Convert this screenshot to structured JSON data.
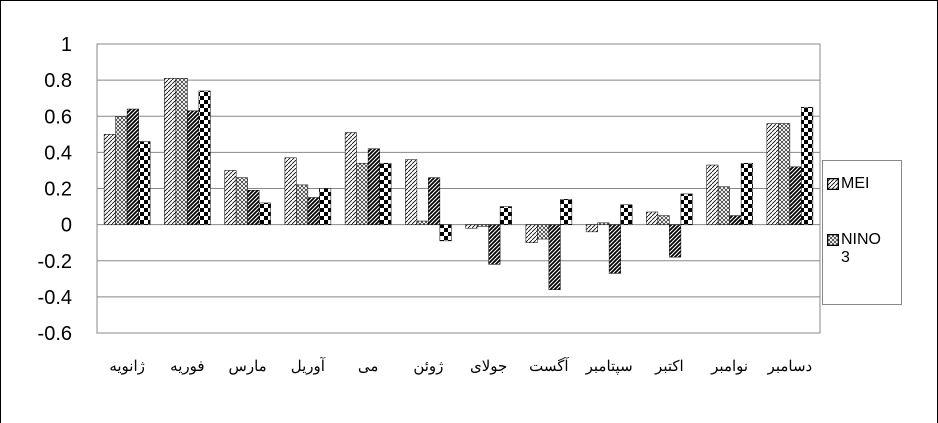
{
  "chart_data": {
    "type": "bar",
    "categories": [
      "ژانویه",
      "فوریه",
      "مارس",
      "آوریل",
      "می",
      "ژوئن",
      "جولای",
      "آگست",
      "سپتامبر",
      "اکتبر",
      "نوامبر",
      "دسامبر"
    ],
    "series": [
      {
        "name": "MEI",
        "color": "#000000",
        "values": [
          0.5,
          0.81,
          0.3,
          0.37,
          0.51,
          0.36,
          -0.02,
          -0.1,
          -0.04,
          0.07,
          0.33,
          0.56
        ]
      },
      {
        "name": "NINO 3",
        "color": "#000000",
        "values": [
          0.6,
          0.81,
          0.26,
          0.22,
          0.34,
          0.02,
          -0.01,
          -0.08,
          0.01,
          0.05,
          0.21,
          0.56
        ]
      },
      {
        "color": "#000000",
        "values": [
          0.64,
          0.63,
          0.19,
          0.15,
          0.42,
          0.26,
          -0.22,
          -0.36,
          -0.27,
          -0.18,
          0.05,
          0.32
        ]
      },
      {
        "color": "#000000",
        "values": [
          0.46,
          0.74,
          0.12,
          0.2,
          0.34,
          -0.09,
          0.1,
          0.14,
          0.11,
          0.17,
          0.34,
          0.65
        ]
      }
    ],
    "ylim": [
      -0.6,
      1
    ],
    "yticks": [
      -0.6,
      -0.4,
      -0.2,
      0,
      0.2,
      0.4,
      0.6,
      0.8,
      1
    ],
    "grid": true
  }
}
